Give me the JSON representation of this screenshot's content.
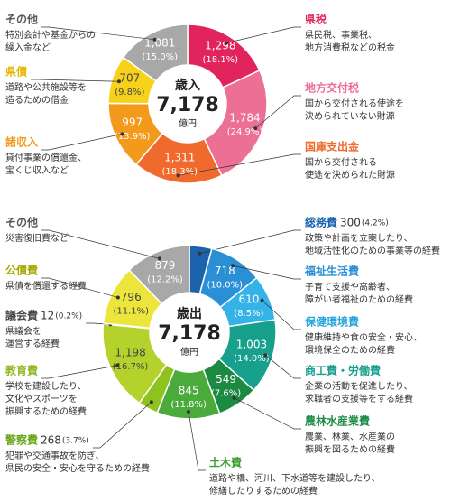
{
  "chart_data": [
    {
      "type": "donut",
      "center_title": "歳入",
      "total_label": "7,178",
      "unit": "億円",
      "categories": [
        "県税",
        "地方交付税",
        "国庫支出金",
        "諸収入",
        "県債",
        "その他"
      ],
      "values": [
        1298,
        1784,
        1311,
        997,
        707,
        1081
      ],
      "value_labels": [
        "1,298",
        "1,784",
        "1,311",
        "997",
        "707",
        "1,081"
      ],
      "percent_labels": [
        "(18.1%)",
        "(24.9%)",
        "(18.3%)",
        "(13.9%)",
        "(9.8%)",
        "(15.0%)"
      ],
      "colors": [
        "#e2245c",
        "#ec6f96",
        "#ef6a2c",
        "#f39a1d",
        "#f8d21a",
        "#a8a8a8"
      ],
      "label_colors": [
        "#e2245c",
        "#ec6f96",
        "#ef6a2c",
        "#f39a1d",
        "#e8b400",
        "#555555"
      ],
      "notes": [
        [
          "県民税、事業税、",
          "地方消費税などの税金"
        ],
        [
          "国から交付される使途を",
          "決められていない財源"
        ],
        [
          "国から交付される",
          "使途を決められた財源"
        ],
        [
          "貸付事業の償還金、",
          "宝くじ収入など"
        ],
        [
          "道路や公共施設等を",
          "造るための借金"
        ],
        [
          "特別会計や基金からの",
          "繰入金など"
        ]
      ]
    },
    {
      "type": "donut",
      "center_title": "歳出",
      "total_label": "7,178",
      "unit": "億円",
      "categories": [
        "総務費",
        "福祉生活費",
        "保健環境費",
        "商工費・労働費",
        "農林水産業費",
        "土木費",
        "警察費",
        "教育費",
        "議会費",
        "公債費",
        "その他"
      ],
      "values": [
        300,
        718,
        610,
        1003,
        549,
        845,
        268,
        1198,
        12,
        796,
        879
      ],
      "value_labels": [
        "300",
        "718",
        "610",
        "1,003",
        "549",
        "845",
        "268",
        "1,198",
        "12",
        "796",
        "879"
      ],
      "percent_labels": [
        "(4.2%)",
        "(10.0%)",
        "(8.5%)",
        "(14.0%)",
        "(7.6%)",
        "(11.8%)",
        "(3.7%)",
        "(16.7%)",
        "(0.2%)",
        "(11.1%)",
        "(12.2%)"
      ],
      "colors": [
        "#1b64ad",
        "#2b8fd6",
        "#35b3e8",
        "#17a08c",
        "#1c8a43",
        "#4aab3b",
        "#8dc21f",
        "#b5d22c",
        "#d8dd30",
        "#ece63c",
        "#a8a8a8"
      ],
      "label_colors": [
        "#1b64ad",
        "#2b8fd6",
        "#2aa6dd",
        "#17a08c",
        "#1c8a43",
        "#3a9e2e",
        "#6aa81a",
        "#8fb81f",
        "#4a4a4a",
        "#a8a800",
        "#555555"
      ],
      "notes": [
        [
          "政策や計画を立案したり、",
          "地域活性化のための事業等の経費"
        ],
        [
          "子育て支援や高齢者、",
          "障がい者福祉のための経費"
        ],
        [
          "健康維持や食の安全・安心、",
          "環境保全のための経費"
        ],
        [
          "企業の活動を促進したり、",
          "求職者の支援等をする経費"
        ],
        [
          "農業、林業、水産業の",
          "振興を図るための経費"
        ],
        [
          "道路や橋、河川、下水道等を建設したり、",
          "修繕したりするための経費"
        ],
        [
          "犯罪や交通事故を防ぎ、",
          "県民の安全・安心を守るための経費"
        ],
        [
          "学校を建設したり、",
          "文化やスポーツを",
          "振興するための経費"
        ],
        [
          "県議会を",
          "運営する経費"
        ],
        [
          "県債を償還する経費"
        ],
        [
          "災害復旧費など"
        ]
      ]
    }
  ]
}
